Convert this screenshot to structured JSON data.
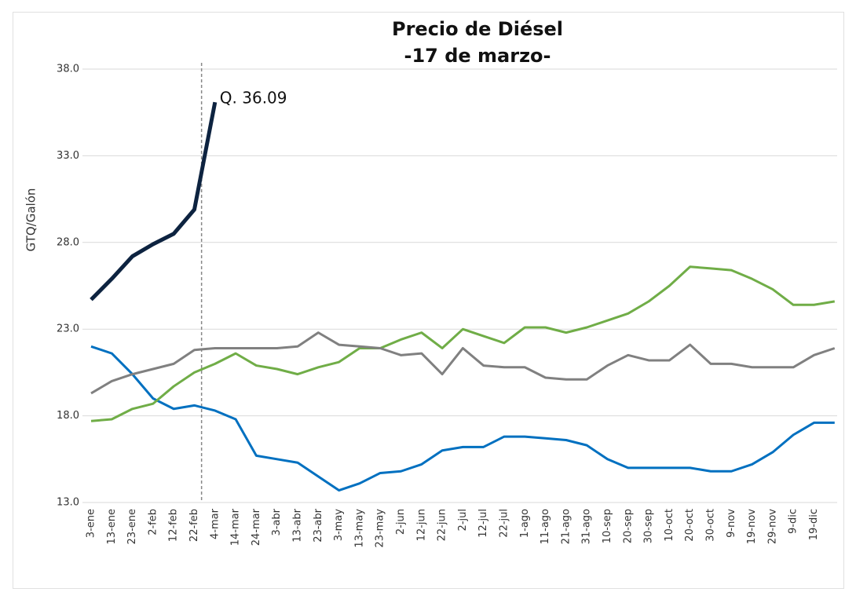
{
  "chart_data": {
    "type": "line",
    "title": "Precio de Diésel",
    "subtitle": "-17 de marzo-",
    "y_label": "GTQ/Galón",
    "categories": [
      "3-ene",
      "13-ene",
      "23-ene",
      "2-feb",
      "12-feb",
      "22-feb",
      "4-mar",
      "14-mar",
      "24-mar",
      "3-abr",
      "13-abr",
      "23-abr",
      "3-may",
      "13-may",
      "23-may",
      "2-jun",
      "12-jun",
      "22-jun",
      "2-jul",
      "12-jul",
      "22-jul",
      "1-ago",
      "11-ago",
      "21-ago",
      "31-ago",
      "10-sep",
      "20-sep",
      "30-sep",
      "10-oct",
      "20-oct",
      "30-oct",
      "9-nov",
      "19-nov",
      "29-nov",
      "9-dic",
      "19-dic",
      null
    ],
    "series": [
      {
        "color": "#0070c0",
        "values": [
          22.0,
          21.6,
          20.4,
          19.0,
          18.4,
          18.6,
          18.3,
          17.8,
          15.7,
          15.5,
          15.3,
          14.5,
          13.7,
          14.1,
          14.7,
          14.8,
          15.2,
          16.0,
          16.2,
          16.2,
          16.8,
          16.8,
          16.7,
          16.6,
          16.3,
          15.5,
          15.0,
          15.0,
          15.0,
          15.0,
          14.8,
          14.8,
          15.2,
          15.9,
          16.9,
          17.6,
          17.6
        ]
      },
      {
        "color": "#70ad47",
        "values": [
          17.7,
          17.8,
          18.4,
          18.7,
          19.7,
          20.5,
          21.0,
          21.6,
          20.9,
          20.7,
          20.4,
          20.8,
          21.1,
          21.9,
          21.9,
          22.4,
          22.8,
          21.9,
          23.0,
          22.6,
          22.2,
          23.1,
          23.1,
          22.8,
          23.1,
          23.5,
          23.9,
          24.6,
          25.5,
          26.6,
          26.5,
          26.4,
          25.9,
          25.3,
          24.4,
          24.4,
          24.6
        ]
      },
      {
        "color": "#808080",
        "values": [
          19.3,
          20.0,
          20.4,
          20.7,
          21.0,
          21.8,
          21.9,
          21.9,
          21.9,
          21.9,
          22.0,
          22.8,
          22.1,
          22.0,
          21.9,
          21.5,
          21.6,
          20.4,
          21.9,
          20.9,
          20.8,
          20.8,
          20.2,
          20.1,
          20.1,
          20.9,
          21.5,
          21.2,
          21.2,
          22.1,
          21.0,
          21.0,
          20.8,
          20.8,
          20.8,
          21.5,
          21.9
        ]
      },
      {
        "color": "#0d2340",
        "width": 5,
        "values": [
          24.7,
          25.9,
          27.2,
          27.9,
          28.5,
          29.9,
          36.09,
          null,
          null,
          null,
          null,
          null,
          null,
          null,
          null,
          null,
          null,
          null,
          null,
          null,
          null,
          null,
          null,
          null,
          null,
          null,
          null,
          null,
          null,
          null,
          null,
          null,
          null,
          null,
          null,
          null,
          null
        ],
        "value_labels": [
          null,
          null,
          null,
          null,
          null,
          null,
          "Q. 36.09",
          null,
          null,
          null,
          null,
          null,
          null,
          null,
          null,
          null,
          null,
          null,
          null,
          null,
          null,
          null,
          null,
          null,
          null,
          null,
          null,
          null,
          null,
          null,
          null,
          null,
          null,
          null,
          null,
          null,
          null
        ]
      }
    ],
    "ylim": [
      13,
      38
    ],
    "yticks": [
      {
        "value": 13,
        "label": "13.0"
      },
      {
        "value": 18,
        "label": "18.0"
      },
      {
        "value": 23,
        "label": "23.0"
      },
      {
        "value": 28,
        "label": "28.0"
      },
      {
        "value": 33,
        "label": "33.0"
      },
      {
        "value": 38,
        "label": "38.0"
      }
    ],
    "grid": true
  }
}
